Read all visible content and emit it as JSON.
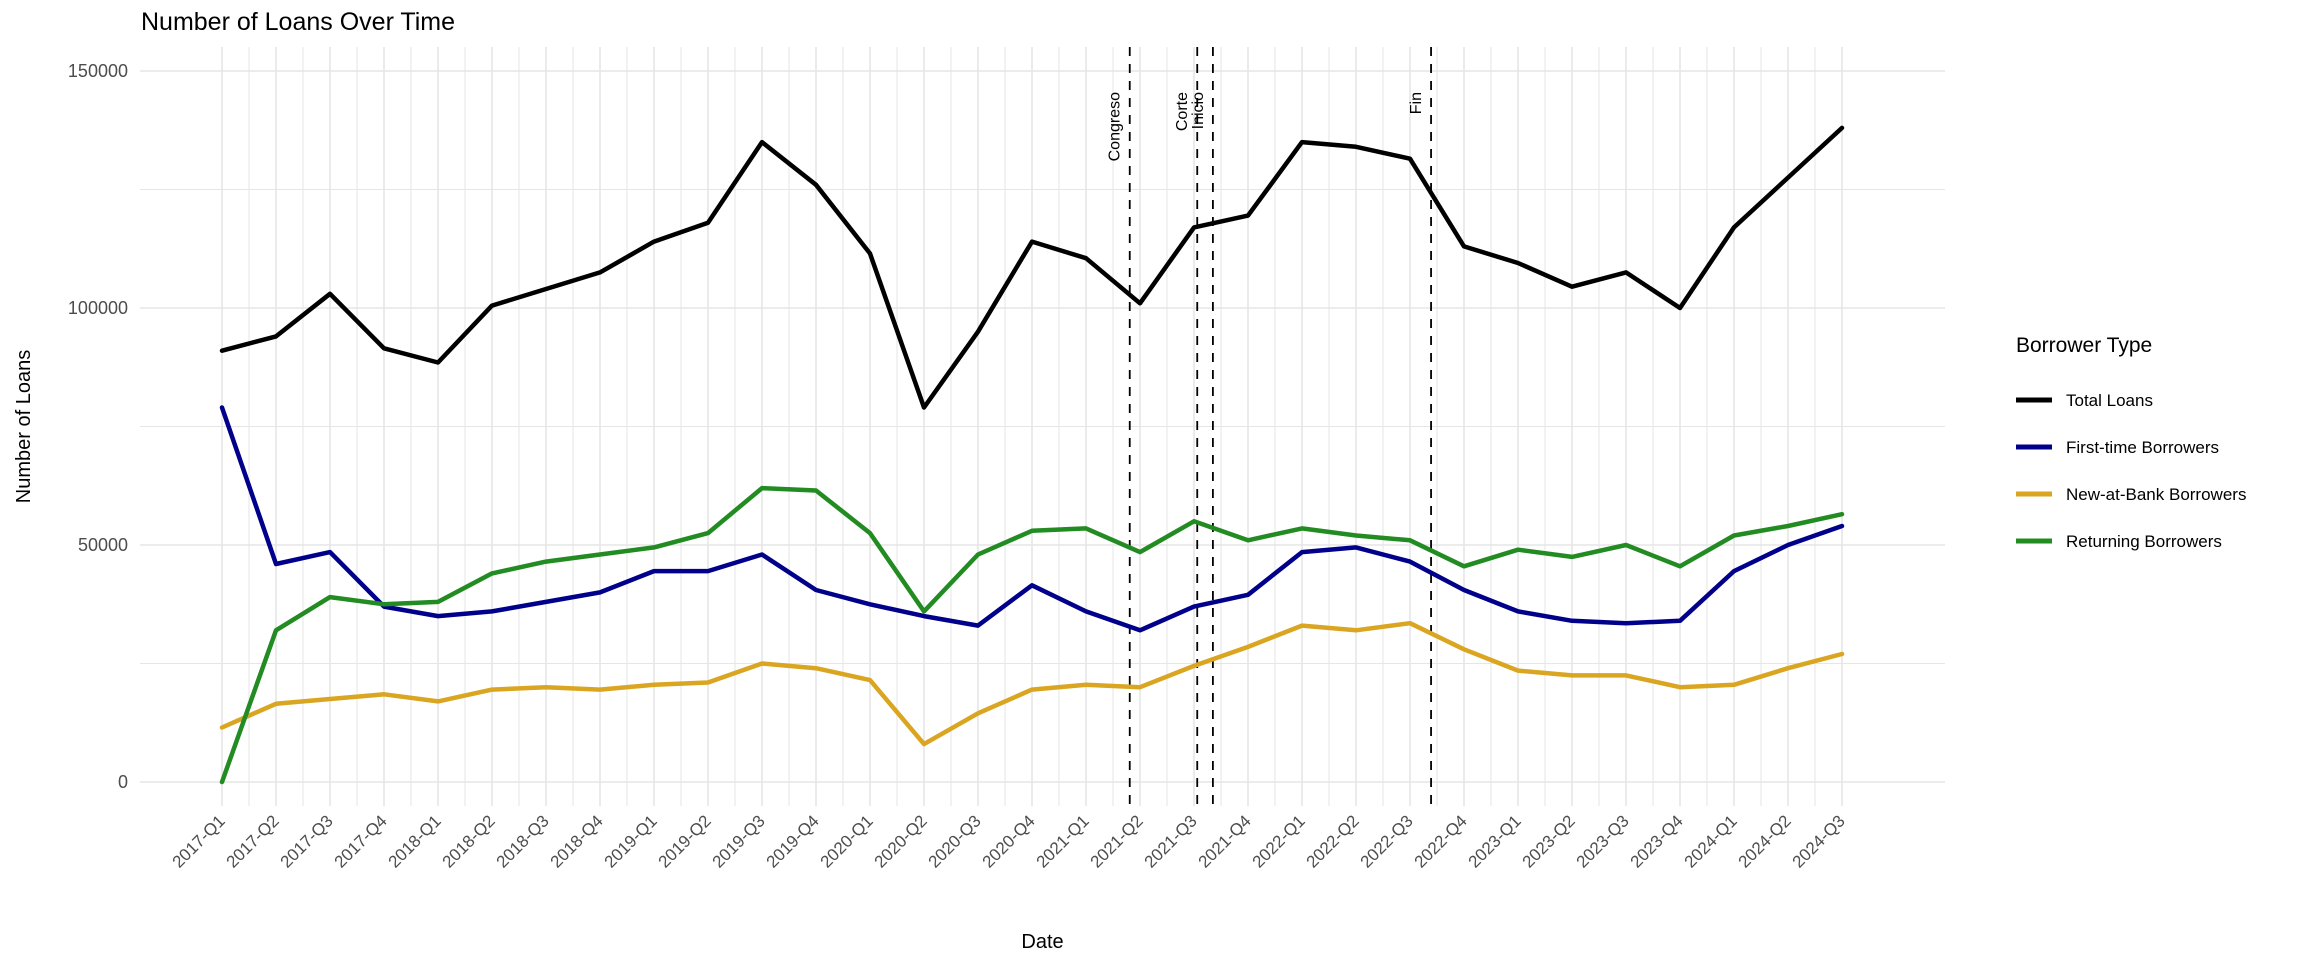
{
  "title": "Number of Loans Over Time",
  "x_axis": {
    "label": "Date"
  },
  "y_axis": {
    "label": "Number of Loans",
    "ticks": [
      0,
      50000,
      100000,
      150000
    ]
  },
  "legend": {
    "title": "Borrower Type",
    "items": [
      {
        "label": "Total Loans",
        "series": "total_loans"
      },
      {
        "label": "First-time Borrowers",
        "series": "first_time"
      },
      {
        "label": "New-at-Bank Borrowers",
        "series": "new_at_bank"
      },
      {
        "label": "Returning Borrowers",
        "series": "returning"
      }
    ]
  },
  "colors": {
    "total_loans": "#000000",
    "first_time": "#00008B",
    "new_at_bank": "#DAA520",
    "returning": "#228B22",
    "gridline": "#E6E6E6",
    "axis_text": "#4d4d4d",
    "vline": "#000000"
  },
  "annotations": [
    {
      "label": "Congreso",
      "x_index": 16.81
    },
    {
      "label": "Corte",
      "x_index": 18.06
    },
    {
      "label": "Inicio",
      "x_index": 18.35
    },
    {
      "label": "Fin",
      "x_index": 22.39
    }
  ],
  "chart_data": {
    "type": "line",
    "title": "Number of Loans Over Time",
    "xlabel": "Date",
    "ylabel": "Number of Loans",
    "ylim": [
      0,
      150000
    ],
    "grid": true,
    "legend_position": "right",
    "categories": [
      "2017-Q1",
      "2017-Q2",
      "2017-Q3",
      "2017-Q4",
      "2018-Q1",
      "2018-Q2",
      "2018-Q3",
      "2018-Q4",
      "2019-Q1",
      "2019-Q2",
      "2019-Q3",
      "2019-Q4",
      "2020-Q1",
      "2020-Q2",
      "2020-Q3",
      "2020-Q4",
      "2021-Q1",
      "2021-Q2",
      "2021-Q3",
      "2021-Q4",
      "2022-Q1",
      "2022-Q2",
      "2022-Q3",
      "2022-Q4",
      "2023-Q1",
      "2023-Q2",
      "2023-Q3",
      "2023-Q4",
      "2024-Q1",
      "2024-Q2",
      "2024-Q3"
    ],
    "series": [
      {
        "name": "Total Loans",
        "color_key": "total_loans",
        "values": [
          91000,
          94000,
          103000,
          91500,
          88500,
          100500,
          104000,
          107500,
          114000,
          118000,
          135000,
          126000,
          111500,
          79000,
          95000,
          114000,
          110500,
          101000,
          117000,
          119500,
          135000,
          134000,
          131500,
          113000,
          109500,
          104500,
          107500,
          100000,
          117000,
          127500,
          138000
        ]
      },
      {
        "name": "First-time Borrowers",
        "color_key": "first_time",
        "values": [
          79000,
          46000,
          48500,
          37000,
          35000,
          36000,
          38000,
          40000,
          44500,
          44500,
          48000,
          40500,
          37500,
          35000,
          33000,
          41500,
          36000,
          32000,
          37000,
          39500,
          48500,
          49500,
          46500,
          40500,
          36000,
          34000,
          33500,
          34000,
          44500,
          50000,
          54000
        ]
      },
      {
        "name": "New-at-Bank Borrowers",
        "color_key": "new_at_bank",
        "values": [
          11500,
          16500,
          17500,
          18500,
          17000,
          19500,
          20000,
          19500,
          20500,
          21000,
          25000,
          24000,
          21500,
          8000,
          14500,
          19500,
          20500,
          20000,
          24500,
          28500,
          33000,
          32000,
          33500,
          28000,
          23500,
          22500,
          22500,
          20000,
          20500,
          24000,
          27000
        ]
      },
      {
        "name": "Returning Borrowers",
        "color_key": "returning",
        "values": [
          0,
          32000,
          39000,
          37500,
          38000,
          44000,
          46500,
          48000,
          49500,
          52500,
          62000,
          61500,
          52500,
          36000,
          48000,
          53000,
          53500,
          48500,
          55000,
          51000,
          53500,
          52000,
          51000,
          45500,
          49000,
          47500,
          50000,
          45500,
          52000,
          54000,
          56500
        ]
      }
    ]
  }
}
